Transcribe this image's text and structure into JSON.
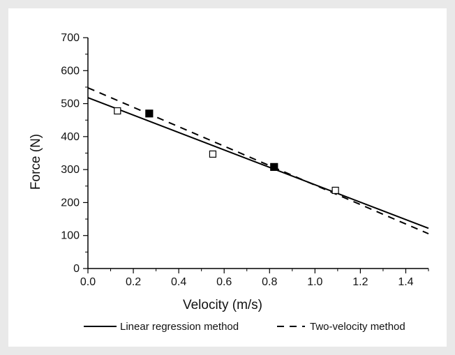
{
  "chart_data": {
    "type": "scatter",
    "xlabel": "Velocity (m/s)",
    "ylabel": "Force (N)",
    "xlim": [
      0.0,
      1.5
    ],
    "ylim": [
      0,
      700
    ],
    "x_ticks": [
      "0.0",
      "0.2",
      "0.4",
      "0.6",
      "0.8",
      "1.0",
      "1.2",
      "1.4"
    ],
    "y_ticks": [
      "0",
      "100",
      "200",
      "300",
      "400",
      "500",
      "600",
      "700"
    ],
    "grid": false,
    "legend_position": "bottom",
    "series": [
      {
        "marker": "open-square",
        "points": [
          [
            0.13,
            478
          ],
          [
            0.55,
            347
          ],
          [
            0.82,
            307
          ],
          [
            1.09,
            237
          ]
        ]
      },
      {
        "marker": "filled-square",
        "points": [
          [
            0.27,
            470
          ],
          [
            0.82,
            308
          ]
        ]
      }
    ],
    "lines": [
      {
        "name": "Linear regression method",
        "style": "solid",
        "intercept": 518,
        "slope": -264
      },
      {
        "name": "Two-velocity method",
        "style": "dashed",
        "intercept": 548,
        "slope": -295
      }
    ]
  }
}
